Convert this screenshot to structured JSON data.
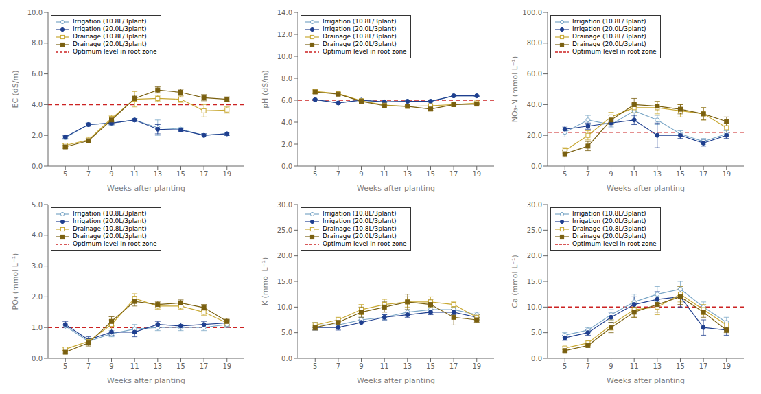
{
  "chart_data": [
    {
      "type": "line",
      "x": [
        5,
        7,
        9,
        11,
        13,
        15,
        17,
        19
      ],
      "xlim": [
        3.5,
        20.5
      ],
      "xticks": [
        5,
        7,
        9,
        11,
        13,
        15,
        17,
        19
      ],
      "xlabel": "Weeks after planting",
      "ylabel": "EC (dS/m)",
      "ylim": [
        0,
        10.0
      ],
      "yticks": [
        {
          "value": 0.0,
          "label": "0.0"
        },
        {
          "value": 2.0,
          "label": "2.0"
        },
        {
          "value": 4.0,
          "label": "4.0"
        },
        {
          "value": 6.0,
          "label": "6.0"
        },
        {
          "value": 8.0,
          "label": "8.0"
        },
        {
          "value": 10.0,
          "label": "10.0"
        }
      ],
      "grid": false,
      "legend": "upper left",
      "series": [
        {
          "name": "Irrigation (10.8L/3plant)",
          "color": "#7BA7C7",
          "marker": "circle_open",
          "line_style": "solid",
          "values": [
            1.85,
            2.7,
            2.8,
            3.0,
            2.5,
            2.4,
            2.0,
            2.1
          ],
          "errors": [
            0.1,
            0.1,
            0.15,
            0.1,
            0.5,
            0.1,
            0.1,
            0.1
          ]
        },
        {
          "name": "Irrigation (20.0L/3plant)",
          "color": "#1F3F8F",
          "marker": "circle",
          "line_style": "solid",
          "values": [
            1.9,
            2.7,
            2.8,
            3.0,
            2.4,
            2.35,
            2.0,
            2.1
          ],
          "errors": [
            0.1,
            0.1,
            0.1,
            0.1,
            0.3,
            0.1,
            0.1,
            0.1
          ]
        },
        {
          "name": "Drainage (10.8L/3plant)",
          "color": "#C8A832",
          "marker": "square_open",
          "line_style": "solid",
          "values": [
            1.35,
            1.7,
            3.1,
            4.35,
            4.4,
            4.35,
            3.6,
            3.65
          ],
          "errors": [
            0.1,
            0.2,
            0.2,
            0.5,
            0.2,
            0.2,
            0.4,
            0.2
          ]
        },
        {
          "name": "Drainage (20.0L/3plant)",
          "color": "#7A6010",
          "marker": "square",
          "line_style": "solid",
          "values": [
            1.25,
            1.65,
            3.0,
            4.4,
            4.95,
            4.8,
            4.45,
            4.35
          ],
          "errors": [
            0.1,
            0.15,
            0.2,
            0.2,
            0.2,
            0.2,
            0.2,
            0.15
          ]
        }
      ],
      "reference_line": {
        "name": "Optimum level in root zone",
        "value": 4.0,
        "color": "#CC2222",
        "line_style": "dashed"
      }
    },
    {
      "type": "line",
      "x": [
        5,
        7,
        9,
        11,
        13,
        15,
        17,
        19
      ],
      "xlim": [
        3.5,
        20.5
      ],
      "xticks": [
        5,
        7,
        9,
        11,
        13,
        15,
        17,
        19
      ],
      "xlabel": "Weeks after planting",
      "ylabel": "pH (dS/m)",
      "ylim": [
        0,
        14.0
      ],
      "yticks": [
        {
          "value": 0.0,
          "label": "0.0"
        },
        {
          "value": 2.0,
          "label": "2.0"
        },
        {
          "value": 4.0,
          "label": "4.0"
        },
        {
          "value": 6.0,
          "label": "6.0"
        },
        {
          "value": 8.0,
          "label": "8.0"
        },
        {
          "value": 10.0,
          "label": "10.0"
        },
        {
          "value": 12.0,
          "label": "12.0"
        },
        {
          "value": 14.0,
          "label": "14.0"
        }
      ],
      "grid": false,
      "legend": "upper left",
      "series": [
        {
          "name": "Irrigation (10.8L/3plant)",
          "color": "#7BA7C7",
          "marker": "circle_open",
          "line_style": "solid",
          "values": [
            6.05,
            5.75,
            6.0,
            5.85,
            5.9,
            5.9,
            6.4,
            6.4
          ],
          "errors": [
            0.05,
            0.05,
            0.05,
            0.05,
            0.05,
            0.05,
            0.05,
            0.05
          ]
        },
        {
          "name": "Irrigation (20.0L/3plant)",
          "color": "#1F3F8F",
          "marker": "circle",
          "line_style": "solid",
          "values": [
            6.05,
            5.75,
            6.0,
            5.85,
            5.9,
            5.9,
            6.4,
            6.4
          ],
          "errors": [
            0.05,
            0.05,
            0.05,
            0.05,
            0.05,
            0.05,
            0.05,
            0.05
          ]
        },
        {
          "name": "Drainage (10.8L/3plant)",
          "color": "#C8A832",
          "marker": "square_open",
          "line_style": "solid",
          "values": [
            6.8,
            6.6,
            5.95,
            5.55,
            5.45,
            5.5,
            5.6,
            5.75
          ],
          "errors": [
            0.2,
            0.1,
            0.05,
            0.05,
            0.05,
            0.05,
            0.1,
            0.05
          ]
        },
        {
          "name": "Drainage (20.0L/3plant)",
          "color": "#7A6010",
          "marker": "square",
          "line_style": "solid",
          "values": [
            6.75,
            6.55,
            5.9,
            5.5,
            5.45,
            5.2,
            5.6,
            5.65
          ],
          "errors": [
            0.1,
            0.1,
            0.05,
            0.05,
            0.05,
            0.1,
            0.05,
            0.05
          ]
        }
      ],
      "reference_line": {
        "name": "Optimum level in root zone",
        "value": 6.0,
        "color": "#CC2222",
        "line_style": "dashed"
      }
    },
    {
      "type": "line",
      "x": [
        5,
        7,
        9,
        11,
        13,
        15,
        17,
        19
      ],
      "xlim": [
        3.5,
        20.5
      ],
      "xticks": [
        5,
        7,
        9,
        11,
        13,
        15,
        17,
        19
      ],
      "xlabel": "Weeks after planting",
      "ylabel": "NO₃-N (mmol L⁻¹)",
      "ylim": [
        0,
        100.0
      ],
      "yticks": [
        {
          "value": 0.0,
          "label": "0.0"
        },
        {
          "value": 20.0,
          "label": "20.0"
        },
        {
          "value": 40.0,
          "label": "40.0"
        },
        {
          "value": 60.0,
          "label": "60.0"
        },
        {
          "value": 80.0,
          "label": "80.0"
        },
        {
          "value": 100.0,
          "label": "100.0"
        }
      ],
      "grid": false,
      "legend": "upper left",
      "series": [
        {
          "name": "Irrigation (10.8L/3plant)",
          "color": "#7BA7C7",
          "marker": "circle_open",
          "line_style": "solid",
          "values": [
            22.0,
            30.0,
            27.0,
            36.0,
            30.0,
            21.0,
            16.0,
            21.0
          ],
          "errors": [
            3.0,
            3.0,
            2.0,
            4.0,
            3.0,
            2.0,
            2.0,
            2.0
          ]
        },
        {
          "name": "Irrigation (20.0L/3plant)",
          "color": "#1F3F8F",
          "marker": "circle",
          "line_style": "solid",
          "values": [
            24.0,
            26.0,
            28.0,
            30.0,
            20.0,
            20.0,
            15.0,
            20.0
          ],
          "errors": [
            2.0,
            2.0,
            2.0,
            3.0,
            8.0,
            2.0,
            2.0,
            2.0
          ]
        },
        {
          "name": "Drainage (10.8L/3plant)",
          "color": "#C8A832",
          "marker": "square_open",
          "line_style": "solid",
          "values": [
            10.0,
            20.0,
            32.0,
            38.0,
            38.0,
            36.0,
            34.0,
            25.0
          ],
          "errors": [
            2.0,
            3.0,
            3.0,
            3.0,
            4.0,
            4.0,
            4.0,
            3.0
          ]
        },
        {
          "name": "Drainage (20.0L/3plant)",
          "color": "#7A6010",
          "marker": "square",
          "line_style": "solid",
          "values": [
            8.0,
            13.0,
            30.0,
            40.0,
            39.0,
            37.0,
            34.0,
            29.0
          ],
          "errors": [
            2.0,
            3.0,
            3.0,
            4.0,
            3.0,
            3.0,
            4.0,
            3.0
          ]
        }
      ],
      "reference_line": {
        "name": "Optimum level in root zone",
        "value": 22.0,
        "color": "#CC2222",
        "line_style": "dashed"
      }
    },
    {
      "type": "line",
      "x": [
        5,
        7,
        9,
        11,
        13,
        15,
        17,
        19
      ],
      "xlim": [
        3.5,
        20.5
      ],
      "xticks": [
        5,
        7,
        9,
        11,
        13,
        15,
        17,
        19
      ],
      "xlabel": "Weeks after planting",
      "ylabel": "PO₄ (mmol L⁻¹)",
      "ylim": [
        0,
        5.0
      ],
      "yticks": [
        {
          "value": 0.0,
          "label": "0.0"
        },
        {
          "value": 1.0,
          "label": "1.0"
        },
        {
          "value": 2.0,
          "label": "2.0"
        },
        {
          "value": 3.0,
          "label": "3.0"
        },
        {
          "value": 4.0,
          "label": "4.0"
        },
        {
          "value": 5.0,
          "label": "5.0"
        }
      ],
      "grid": false,
      "legend": "upper left",
      "series": [
        {
          "name": "Irrigation (10.8L/3plant)",
          "color": "#7BA7C7",
          "marker": "circle_open",
          "line_style": "solid",
          "values": [
            1.05,
            0.55,
            0.8,
            0.95,
            1.0,
            1.0,
            1.0,
            1.1
          ],
          "errors": [
            0.1,
            0.1,
            0.1,
            0.15,
            0.1,
            0.1,
            0.1,
            0.1
          ]
        },
        {
          "name": "Irrigation (20.0L/3plant)",
          "color": "#1F3F8F",
          "marker": "circle",
          "line_style": "solid",
          "values": [
            1.1,
            0.6,
            0.85,
            0.85,
            1.1,
            1.05,
            1.1,
            1.15
          ],
          "errors": [
            0.1,
            0.1,
            0.1,
            0.15,
            0.1,
            0.1,
            0.1,
            0.1
          ]
        },
        {
          "name": "Drainage (10.8L/3plant)",
          "color": "#C8A832",
          "marker": "square_open",
          "line_style": "solid",
          "values": [
            0.3,
            0.55,
            1.1,
            1.95,
            1.7,
            1.7,
            1.5,
            1.15
          ],
          "errors": [
            0.05,
            0.1,
            0.15,
            0.15,
            0.1,
            0.1,
            0.1,
            0.1
          ]
        },
        {
          "name": "Drainage (20.0L/3plant)",
          "color": "#7A6010",
          "marker": "square",
          "line_style": "solid",
          "values": [
            0.2,
            0.5,
            1.2,
            1.85,
            1.75,
            1.8,
            1.65,
            1.2
          ],
          "errors": [
            0.05,
            0.1,
            0.15,
            0.15,
            0.1,
            0.1,
            0.1,
            0.1
          ]
        }
      ],
      "reference_line": {
        "name": "Optimum level in root zone",
        "value": 1.0,
        "color": "#CC2222",
        "line_style": "dashed"
      }
    },
    {
      "type": "line",
      "x": [
        5,
        7,
        9,
        11,
        13,
        15,
        17,
        19
      ],
      "xlim": [
        3.5,
        20.5
      ],
      "xticks": [
        5,
        7,
        9,
        11,
        13,
        15,
        17,
        19
      ],
      "xlabel": "Weeks after planting",
      "ylabel": "K (mmol L⁻¹)",
      "ylim": [
        0,
        30.0
      ],
      "yticks": [
        {
          "value": 0.0,
          "label": "0.0"
        },
        {
          "value": 5.0,
          "label": "5.0"
        },
        {
          "value": 10.0,
          "label": "10.0"
        },
        {
          "value": 15.0,
          "label": "15.0"
        },
        {
          "value": 20.0,
          "label": "20.0"
        },
        {
          "value": 25.0,
          "label": "25.0"
        },
        {
          "value": 30.0,
          "label": "30.0"
        }
      ],
      "grid": false,
      "legend": "upper left",
      "series": [
        {
          "name": "Irrigation (10.8L/3plant)",
          "color": "#7BA7C7",
          "marker": "circle_open",
          "line_style": "solid",
          "values": [
            6.5,
            6.5,
            7.5,
            8.0,
            9.0,
            9.5,
            9.5,
            8.5
          ],
          "errors": [
            0.5,
            0.5,
            0.5,
            0.5,
            0.5,
            0.5,
            0.5,
            0.5
          ]
        },
        {
          "name": "Irrigation (20.0L/3plant)",
          "color": "#1F3F8F",
          "marker": "circle",
          "line_style": "solid",
          "values": [
            6.0,
            6.0,
            7.0,
            8.0,
            8.5,
            9.0,
            9.0,
            8.0
          ],
          "errors": [
            0.5,
            0.5,
            0.5,
            0.5,
            0.5,
            0.5,
            0.5,
            0.5
          ]
        },
        {
          "name": "Drainage (10.8L/3plant)",
          "color": "#C8A832",
          "marker": "square_open",
          "line_style": "solid",
          "values": [
            6.5,
            7.5,
            9.5,
            10.5,
            11.0,
            11.0,
            10.5,
            8.0
          ],
          "errors": [
            0.5,
            0.5,
            1.0,
            1.0,
            1.0,
            1.0,
            0.5,
            0.5
          ]
        },
        {
          "name": "Drainage (20.0L/3plant)",
          "color": "#7A6010",
          "marker": "square",
          "line_style": "solid",
          "values": [
            6.0,
            7.0,
            9.0,
            10.0,
            11.0,
            10.5,
            8.0,
            7.5
          ],
          "errors": [
            0.5,
            0.5,
            1.0,
            1.0,
            1.5,
            1.0,
            1.5,
            0.5
          ]
        }
      ],
      "reference_line": {
        "name": "Optimum level in root zone",
        "value": null,
        "color": "#CC2222",
        "line_style": "dashed"
      }
    },
    {
      "type": "line",
      "x": [
        5,
        7,
        9,
        11,
        13,
        15,
        17,
        19
      ],
      "xlim": [
        3.5,
        20.5
      ],
      "xticks": [
        5,
        7,
        9,
        11,
        13,
        15,
        17,
        19
      ],
      "xlabel": "Weeks after planting",
      "ylabel": "Ca (mmol L⁻¹)",
      "ylim": [
        0,
        30.0
      ],
      "yticks": [
        {
          "value": 0.0,
          "label": "0.0"
        },
        {
          "value": 5.0,
          "label": "5.0"
        },
        {
          "value": 10.0,
          "label": "10.0"
        },
        {
          "value": 15.0,
          "label": "15.0"
        },
        {
          "value": 20.0,
          "label": "20.0"
        },
        {
          "value": 25.0,
          "label": "25.0"
        },
        {
          "value": 30.0,
          "label": "30.0"
        }
      ],
      "grid": false,
      "legend": "upper left",
      "series": [
        {
          "name": "Irrigation (10.8L/3plant)",
          "color": "#7BA7C7",
          "marker": "circle_open",
          "line_style": "solid",
          "values": [
            4.5,
            5.5,
            8.5,
            11.0,
            12.5,
            13.5,
            10.0,
            7.0
          ],
          "errors": [
            0.5,
            0.5,
            1.0,
            1.5,
            1.5,
            1.5,
            1.0,
            1.0
          ]
        },
        {
          "name": "Irrigation (20.0L/3plant)",
          "color": "#1F3F8F",
          "marker": "circle",
          "line_style": "solid",
          "values": [
            4.0,
            5.0,
            8.0,
            10.5,
            11.5,
            12.0,
            6.0,
            5.5
          ],
          "errors": [
            0.5,
            0.5,
            1.0,
            1.5,
            1.5,
            2.0,
            1.5,
            1.0
          ]
        },
        {
          "name": "Drainage (10.8L/3plant)",
          "color": "#C8A832",
          "marker": "square_open",
          "line_style": "solid",
          "values": [
            2.0,
            3.0,
            6.5,
            9.5,
            10.0,
            12.5,
            9.5,
            6.5
          ],
          "errors": [
            0.3,
            0.5,
            1.0,
            1.5,
            1.5,
            1.5,
            1.0,
            0.5
          ]
        },
        {
          "name": "Drainage (20.0L/3plant)",
          "color": "#7A6010",
          "marker": "square",
          "line_style": "solid",
          "values": [
            1.5,
            2.5,
            6.0,
            9.0,
            10.5,
            12.0,
            9.0,
            5.5
          ],
          "errors": [
            0.3,
            0.3,
            1.0,
            1.0,
            1.5,
            1.5,
            1.0,
            0.5
          ]
        }
      ],
      "reference_line": {
        "name": "Optimum level in root zone",
        "value": 10.0,
        "color": "#CC2222",
        "line_style": "dashed"
      }
    }
  ]
}
